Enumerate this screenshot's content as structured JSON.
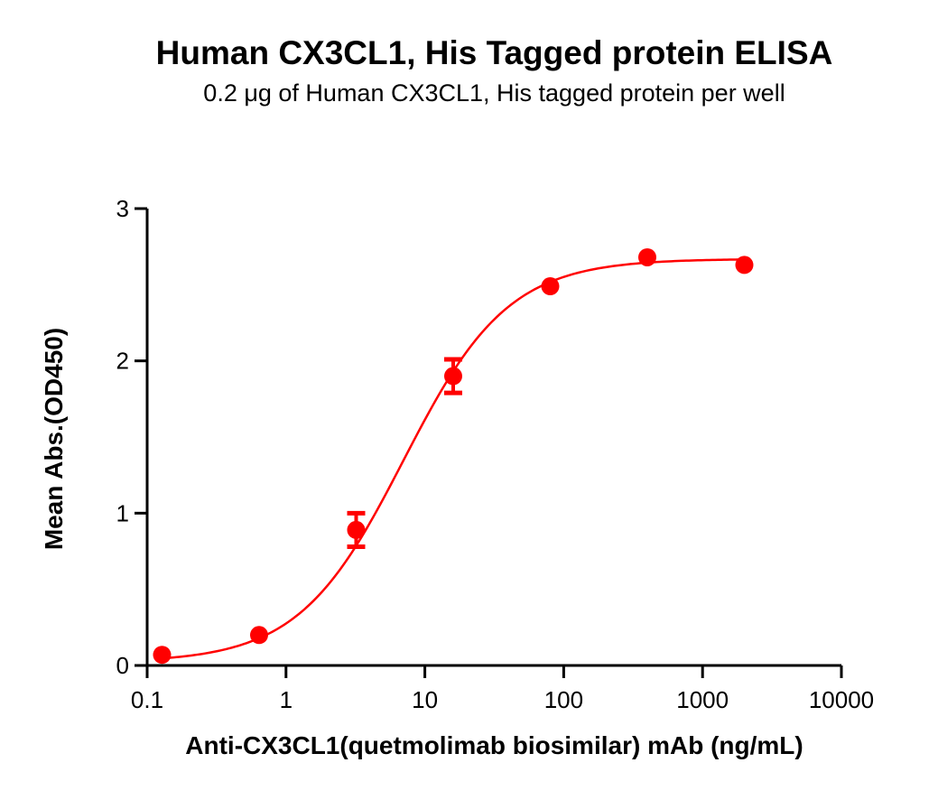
{
  "chart_data": {
    "type": "scatter",
    "title": "Human CX3CL1, His Tagged protein ELISA",
    "subtitle": "0.2 μg of Human CX3CL1, His tagged protein per well",
    "xlabel": "Anti-CX3CL1(quetmolimab biosimilar) mAb (ng/mL)",
    "ylabel": "Mean Abs.(OD450)",
    "xscale": "log",
    "xlim": [
      0.1,
      10000
    ],
    "ylim": [
      0,
      3
    ],
    "xticks": [
      "0.1",
      "1",
      "10",
      "100",
      "1000",
      "10000"
    ],
    "yticks": [
      "0",
      "1",
      "2",
      "3"
    ],
    "grid": false,
    "legend": null,
    "series": [
      {
        "name": "Human CX3CL1, His Tagged protein",
        "color": "#ff0000",
        "marker": "circle",
        "fit": "4PL sigmoidal curve",
        "x": [
          0.128,
          0.64,
          3.2,
          16,
          80,
          400,
          2000
        ],
        "y": [
          0.07,
          0.2,
          0.89,
          1.9,
          2.49,
          2.68,
          2.63
        ],
        "error": [
          0.02,
          0.02,
          0.11,
          0.11,
          0.02,
          0.02,
          0.02
        ]
      }
    ]
  },
  "text": {
    "title": "Human CX3CL1, His Tagged protein ELISA",
    "subtitle": "0.2 μg of Human CX3CL1, His tagged protein per well",
    "xlabel": "Anti-CX3CL1(quetmolimab biosimilar) mAb (ng/mL)",
    "ylabel": "Mean Abs.(OD450)"
  }
}
